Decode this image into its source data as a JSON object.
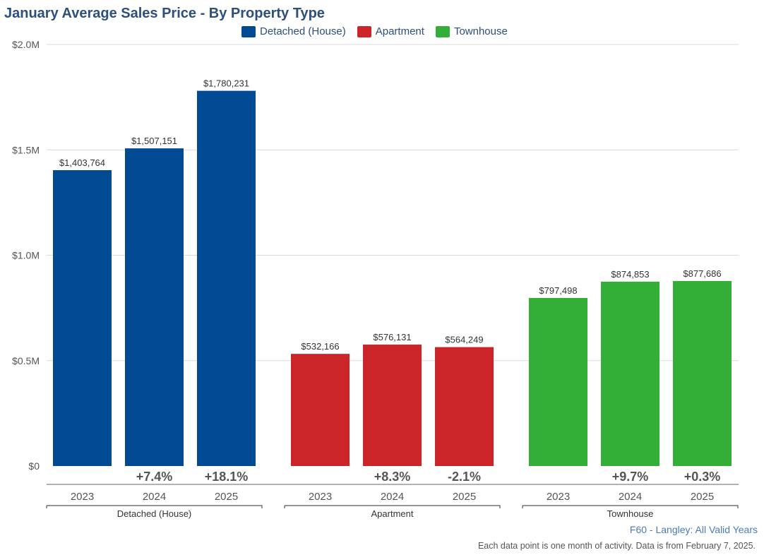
{
  "title": "January Average Sales Price - By Property Type",
  "legend": [
    {
      "label": "Detached (House)",
      "color": "#004a94"
    },
    {
      "label": "Apartment",
      "color": "#cc2529"
    },
    {
      "label": "Townhouse",
      "color": "#33ae36"
    }
  ],
  "chart_data": {
    "type": "bar",
    "title": "January Average Sales Price - By Property Type",
    "ylim": [
      0,
      2000000
    ],
    "y_ticks": [
      {
        "value": 0,
        "label": "$0"
      },
      {
        "value": 500000,
        "label": "$0.5M"
      },
      {
        "value": 1000000,
        "label": "$1.0M"
      },
      {
        "value": 1500000,
        "label": "$1.5M"
      },
      {
        "value": 2000000,
        "label": "$2.0M"
      }
    ],
    "grid": true,
    "legend_position": "top",
    "groups": [
      {
        "name": "Detached (House)",
        "color": "#004a94",
        "bars": [
          {
            "year": "2023",
            "value": 1403764,
            "label": "$1,403,764",
            "change": ""
          },
          {
            "year": "2024",
            "value": 1507151,
            "label": "$1,507,151",
            "change": "+7.4%"
          },
          {
            "year": "2025",
            "value": 1780231,
            "label": "$1,780,231",
            "change": "+18.1%"
          }
        ]
      },
      {
        "name": "Apartment",
        "color": "#cc2529",
        "bars": [
          {
            "year": "2023",
            "value": 532166,
            "label": "$532,166",
            "change": ""
          },
          {
            "year": "2024",
            "value": 576131,
            "label": "$576,131",
            "change": "+8.3%"
          },
          {
            "year": "2025",
            "value": 564249,
            "label": "$564,249",
            "change": "-2.1%"
          }
        ]
      },
      {
        "name": "Townhouse",
        "color": "#33ae36",
        "bars": [
          {
            "year": "2023",
            "value": 797498,
            "label": "$797,498",
            "change": ""
          },
          {
            "year": "2024",
            "value": 874853,
            "label": "$874,853",
            "change": "+9.7%"
          },
          {
            "year": "2025",
            "value": 877686,
            "label": "$877,686",
            "change": "+0.3%"
          }
        ]
      }
    ]
  },
  "footer": {
    "source": "F60 - Langley: All Valid Years",
    "note": "Each data point is one month of activity. Data is from February 7, 2025."
  }
}
